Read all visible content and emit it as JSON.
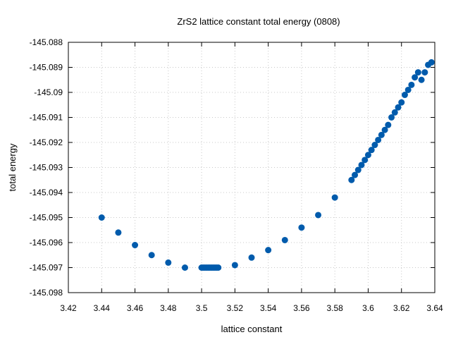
{
  "chart_data": {
    "type": "scatter",
    "title": "ZrS2 lattice constant total energy (0808)",
    "xlabel": "lattice constant",
    "ylabel": "total energy",
    "xlim": [
      3.42,
      3.64
    ],
    "ylim": [
      -145.098,
      -145.088
    ],
    "x_ticks": [
      "3.42",
      "3.44",
      "3.46",
      "3.48",
      "3.5",
      "3.52",
      "3.54",
      "3.56",
      "3.58",
      "3.6",
      "3.62",
      "3.64"
    ],
    "y_ticks": [
      "-145.088",
      "-145.089",
      "-145.09",
      "-145.091",
      "-145.092",
      "-145.093",
      "-145.094",
      "-145.095",
      "-145.096",
      "-145.097",
      "-145.098"
    ],
    "grid": true,
    "legend": "none",
    "marker_color": "#005BAC",
    "grid_color": "#C8C8C8",
    "series": [
      {
        "x": [
          3.44,
          3.45,
          3.46,
          3.47,
          3.48,
          3.49,
          3.5,
          3.501,
          3.502,
          3.503,
          3.504,
          3.505,
          3.506,
          3.507,
          3.508,
          3.509,
          3.51,
          3.52,
          3.53,
          3.54,
          3.55,
          3.56,
          3.57,
          3.58,
          3.59,
          3.592,
          3.594,
          3.596,
          3.598,
          3.6,
          3.602,
          3.604,
          3.606,
          3.608,
          3.61,
          3.612,
          3.614,
          3.616,
          3.618,
          3.62,
          3.622,
          3.624,
          3.626,
          3.628,
          3.63,
          3.632,
          3.634,
          3.636,
          3.638
        ],
        "y": [
          -145.095,
          -145.0956,
          -145.0961,
          -145.0965,
          -145.0968,
          -145.097,
          -145.097,
          -145.097,
          -145.097,
          -145.097,
          -145.097,
          -145.097,
          -145.097,
          -145.097,
          -145.097,
          -145.097,
          -145.097,
          -145.0969,
          -145.0966,
          -145.0963,
          -145.0959,
          -145.0954,
          -145.0949,
          -145.0942,
          -145.0935,
          -145.0933,
          -145.0931,
          -145.0929,
          -145.0927,
          -145.0925,
          -145.0923,
          -145.0921,
          -145.0919,
          -145.0917,
          -145.0915,
          -145.0913,
          -145.091,
          -145.0908,
          -145.0906,
          -145.0904,
          -145.0901,
          -145.0899,
          -145.0897,
          -145.0894,
          -145.0892,
          -145.0895,
          -145.0892,
          -145.0889,
          -145.0888
        ]
      }
    ]
  }
}
